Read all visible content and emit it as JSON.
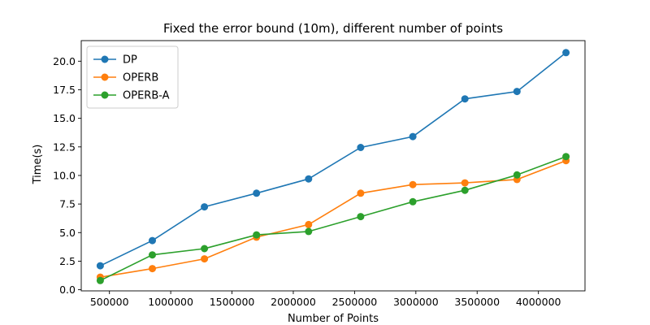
{
  "chart_data": {
    "type": "line",
    "title": "Fixed the error bound (10m), different number of points",
    "xlabel": "Number of Points",
    "ylabel": "Time(s)",
    "x": [
      425000,
      850000,
      1275000,
      1700000,
      2125000,
      2550000,
      2975000,
      3400000,
      3825000,
      4225000
    ],
    "xlim": [
      270000,
      4380000
    ],
    "ylim": [
      -0.1,
      21.8
    ],
    "xticks": [
      500000,
      1000000,
      1500000,
      2000000,
      2500000,
      3000000,
      3500000,
      4000000
    ],
    "xtick_labels": [
      "500000",
      "1000000",
      "1500000",
      "2000000",
      "2500000",
      "3000000",
      "3500000",
      "4000000"
    ],
    "yticks": [
      0,
      2.5,
      5,
      7.5,
      10,
      12.5,
      15,
      17.5,
      20
    ],
    "ytick_labels": [
      "0.0",
      "2.5",
      "5.0",
      "7.5",
      "10.0",
      "12.5",
      "15.0",
      "17.5",
      "20.0"
    ],
    "grid": false,
    "legend_position": "top-left",
    "series": [
      {
        "name": "DP",
        "color": "#1f77b4",
        "values": [
          2.1,
          4.3,
          7.25,
          8.45,
          9.7,
          12.45,
          13.4,
          16.7,
          17.35,
          20.75
        ]
      },
      {
        "name": "OPERB",
        "color": "#ff7f0e",
        "values": [
          1.1,
          1.85,
          2.7,
          4.6,
          5.7,
          8.45,
          9.2,
          9.35,
          9.65,
          11.3
        ]
      },
      {
        "name": "OPERB-A",
        "color": "#2ca02c",
        "values": [
          0.8,
          3.05,
          3.6,
          4.8,
          5.1,
          6.4,
          7.7,
          8.7,
          10.05,
          11.65
        ]
      }
    ]
  }
}
